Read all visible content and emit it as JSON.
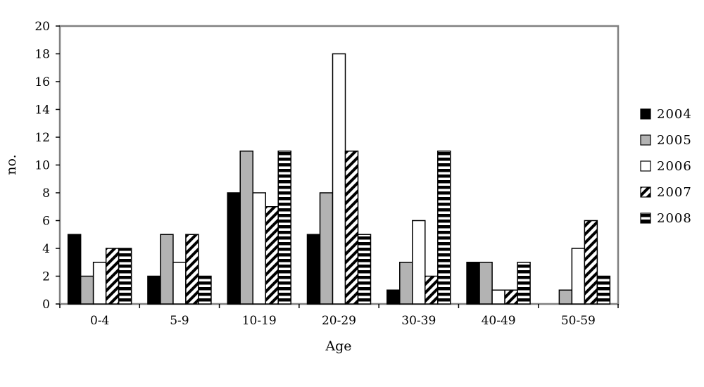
{
  "chart_data": {
    "type": "bar",
    "title": "",
    "xlabel": "Age",
    "ylabel": "no.",
    "ylim": [
      0,
      20
    ],
    "yticks": [
      0,
      2,
      4,
      6,
      8,
      10,
      12,
      14,
      16,
      18,
      20
    ],
    "categories": [
      "0-4",
      "5-9",
      "10-19",
      "20-29",
      "30-39",
      "40-49",
      "50-59"
    ],
    "series": [
      {
        "name": "2004",
        "values": [
          5,
          2,
          8,
          5,
          1,
          3,
          0
        ],
        "fill": "solid-black"
      },
      {
        "name": "2005",
        "values": [
          2,
          5,
          11,
          8,
          3,
          3,
          1
        ],
        "fill": "gray"
      },
      {
        "name": "2006",
        "values": [
          3,
          3,
          8,
          18,
          6,
          1,
          4
        ],
        "fill": "white"
      },
      {
        "name": "2007",
        "values": [
          4,
          5,
          7,
          11,
          2,
          1,
          6
        ],
        "fill": "diagonal-stripes"
      },
      {
        "name": "2008",
        "values": [
          4,
          2,
          11,
          5,
          11,
          3,
          2
        ],
        "fill": "horizontal-stripes"
      }
    ],
    "grid": false,
    "legend_position": "right",
    "colors": {
      "black": "#000000",
      "gray": "#b3b3b3",
      "white": "#ffffff",
      "frame": "#808080"
    }
  }
}
